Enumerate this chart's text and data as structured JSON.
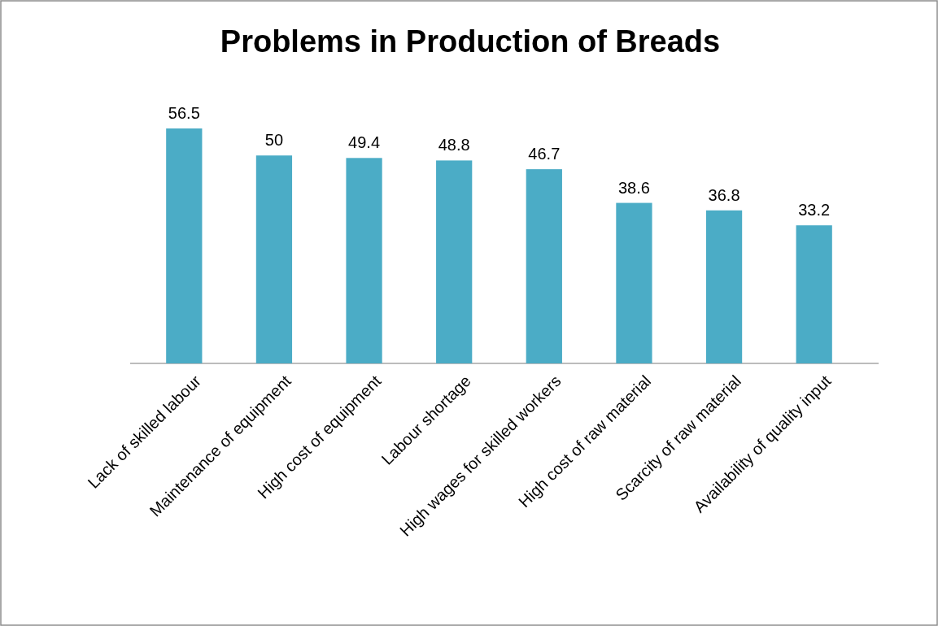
{
  "chart_data": {
    "type": "bar",
    "title": "Problems in Production of Breads",
    "categories": [
      "Lack of skilled labour",
      "Maintenance of equipment",
      "High cost of equipment",
      "Labour shortage",
      "High wages for skilled workers",
      "High cost of raw material",
      "Scarcity of raw material",
      "Availability of quality input"
    ],
    "values": [
      56.5,
      50,
      49.4,
      48.8,
      46.7,
      38.6,
      36.8,
      33.2
    ],
    "color": "#4bacc6",
    "data_labels": true
  }
}
